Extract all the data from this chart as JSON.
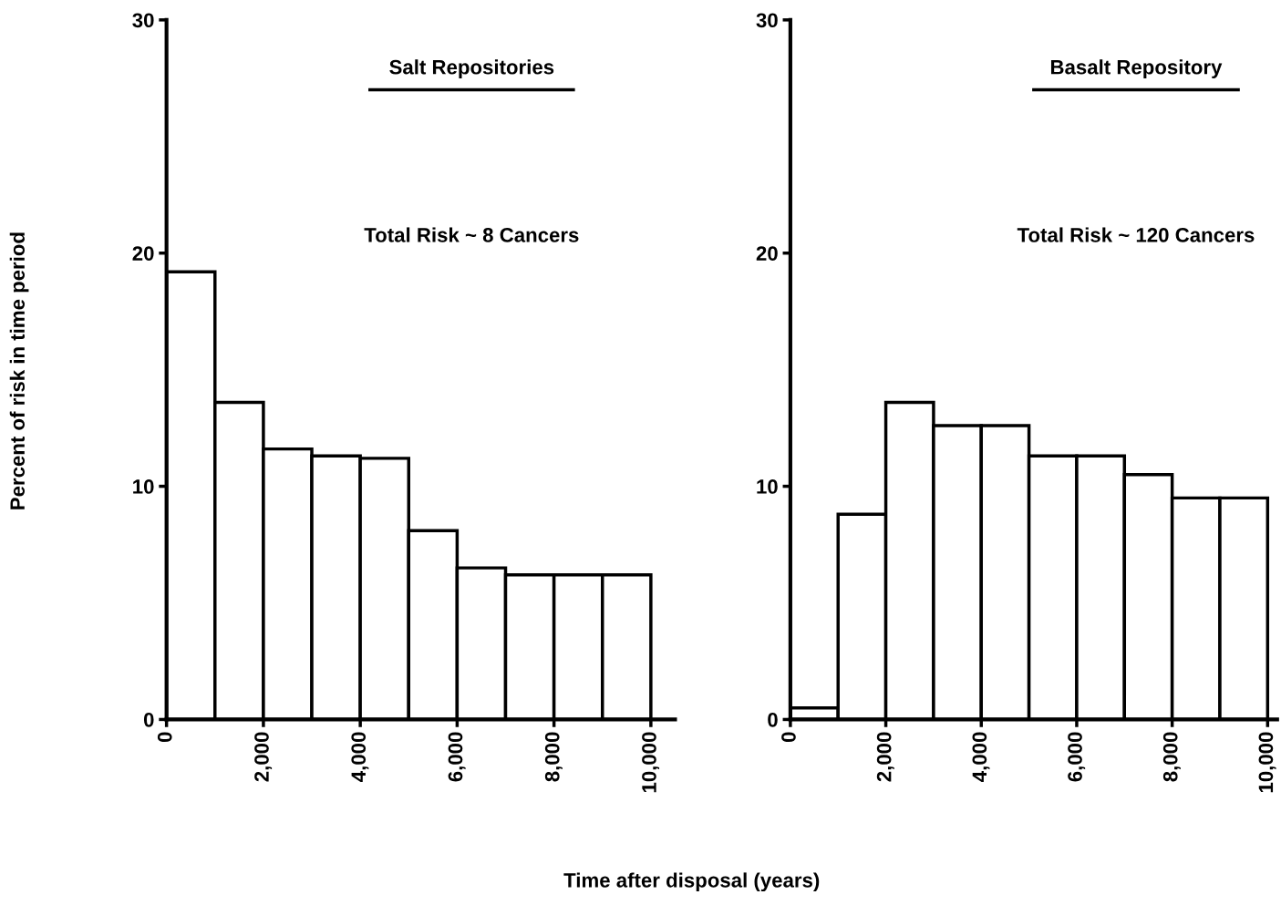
{
  "chart_data": [
    {
      "type": "histogram",
      "title": "Salt Repositories",
      "ylabel": "Percent of risk in time period",
      "xlabel": "Time after disposal (years)",
      "annotations": [
        "Total Risk ~ 8 Cancers"
      ],
      "bins": [
        0,
        1000,
        2000,
        3000,
        4000,
        5000,
        6000,
        7000,
        8000,
        9000,
        10000
      ],
      "values": [
        19.2,
        13.6,
        11.6,
        11.3,
        11.2,
        8.1,
        6.5,
        6.2,
        6.2,
        6.2
      ],
      "color": "#ffffff",
      "xlim": [
        0,
        10500
      ],
      "ylim": [
        0,
        30
      ],
      "yticks": [
        0,
        10,
        20,
        30
      ],
      "xticks": [
        0,
        {
          "value": 2000,
          "label": "2,000"
        },
        {
          "value": 4000,
          "label": "4,000"
        },
        {
          "value": 6000,
          "label": "6,000"
        },
        {
          "value": 8000,
          "label": "8,000"
        },
        {
          "value": 10000,
          "label": "10,000"
        }
      ],
      "grid": false,
      "legend": false
    },
    {
      "type": "histogram",
      "title": "Basalt Repository",
      "annotations": [
        "Total Risk ~ 120 Cancers"
      ],
      "bins": [
        0,
        1000,
        2000,
        3000,
        4000,
        5000,
        6000,
        7000,
        8000,
        9000,
        10000
      ],
      "values": [
        0.5,
        8.8,
        13.6,
        12.6,
        12.6,
        11.3,
        11.3,
        10.5,
        9.5,
        9.5
      ],
      "color": "#ffffff",
      "xlim": [
        0,
        10200
      ],
      "ylim": [
        0,
        30
      ],
      "yticks": [
        0,
        10,
        20,
        30
      ],
      "xticks": [
        0,
        {
          "value": 2000,
          "label": "2,000"
        },
        {
          "value": 4000,
          "label": "4,000"
        },
        {
          "value": 6000,
          "label": "6,000"
        },
        {
          "value": 8000,
          "label": "8,000"
        },
        {
          "value": 10000,
          "label": "10,000"
        }
      ],
      "grid": false,
      "legend": false
    }
  ]
}
